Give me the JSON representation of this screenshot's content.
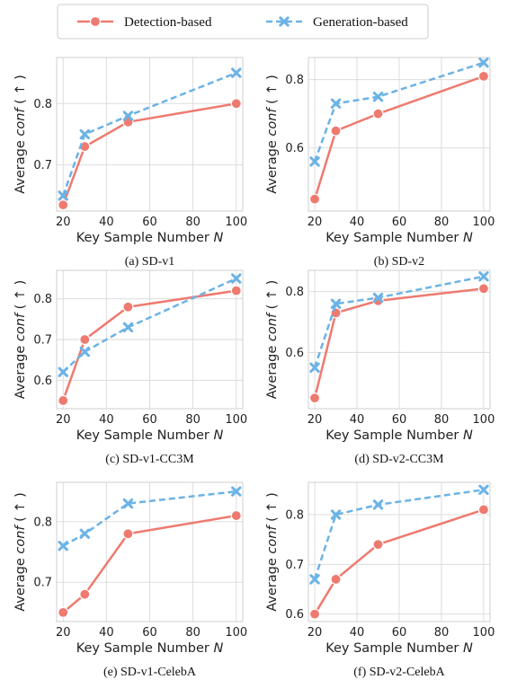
{
  "legend": {
    "series": [
      {
        "label": "Detection-based",
        "color": "#EE7A6F",
        "marker": "circle",
        "dash": "solid"
      },
      {
        "label": "Generation-based",
        "color": "#6BB3E6",
        "marker": "x",
        "dash": "dashed"
      }
    ]
  },
  "axes": {
    "xlabel": "Key Sample Number",
    "xvar": "N",
    "ylabel": "Average",
    "yvar": "conf",
    "yarrow": "( ↑ )"
  },
  "chart_data": [
    {
      "type": "line",
      "caption": "(a)  SD-v1",
      "x": [
        20,
        30,
        50,
        100
      ],
      "xlim": [
        17,
        103
      ],
      "xticks": [
        20,
        40,
        60,
        80,
        100
      ],
      "ylim": [
        0.625,
        0.875
      ],
      "yticks": [
        0.7,
        0.8
      ],
      "yticklabels": [
        "0.7",
        "0.8"
      ],
      "grid": true,
      "series": [
        {
          "name": "Detection-based",
          "values": [
            0.635,
            0.73,
            0.77,
            0.8
          ]
        },
        {
          "name": "Generation-based",
          "values": [
            0.65,
            0.75,
            0.78,
            0.85
          ]
        }
      ]
    },
    {
      "type": "line",
      "caption": "(b)  SD-v2",
      "x": [
        20,
        30,
        50,
        100
      ],
      "xlim": [
        17,
        103
      ],
      "xticks": [
        20,
        40,
        60,
        80,
        100
      ],
      "ylim": [
        0.415,
        0.865
      ],
      "yticks": [
        0.6,
        0.8
      ],
      "yticklabels": [
        "0.6",
        "0.8"
      ],
      "grid": true,
      "series": [
        {
          "name": "Detection-based",
          "values": [
            0.45,
            0.65,
            0.7,
            0.81
          ]
        },
        {
          "name": "Generation-based",
          "values": [
            0.56,
            0.73,
            0.75,
            0.85
          ]
        }
      ]
    },
    {
      "type": "line",
      "caption": "(c)  SD-v1-CC3M",
      "x": [
        20,
        30,
        50,
        100
      ],
      "xlim": [
        17,
        103
      ],
      "xticks": [
        20,
        40,
        60,
        80,
        100
      ],
      "ylim": [
        0.53,
        0.87
      ],
      "yticks": [
        0.6,
        0.7,
        0.8
      ],
      "yticklabels": [
        "0.6",
        "0.7",
        "0.8"
      ],
      "grid": true,
      "series": [
        {
          "name": "Detection-based",
          "values": [
            0.55,
            0.7,
            0.78,
            0.82
          ]
        },
        {
          "name": "Generation-based",
          "values": [
            0.62,
            0.67,
            0.73,
            0.85
          ]
        }
      ]
    },
    {
      "type": "line",
      "caption": "(d)  SD-v2-CC3M",
      "x": [
        20,
        30,
        50,
        100
      ],
      "xlim": [
        17,
        103
      ],
      "xticks": [
        20,
        40,
        60,
        80,
        100
      ],
      "ylim": [
        0.415,
        0.87
      ],
      "yticks": [
        0.6,
        0.8
      ],
      "yticklabels": [
        "0.6",
        "0.8"
      ],
      "grid": true,
      "series": [
        {
          "name": "Detection-based",
          "values": [
            0.45,
            0.73,
            0.77,
            0.81
          ]
        },
        {
          "name": "Generation-based",
          "values": [
            0.55,
            0.76,
            0.78,
            0.85
          ]
        }
      ]
    },
    {
      "type": "line",
      "caption": "(e)  SD-v1-CelebA",
      "x": [
        20,
        30,
        50,
        100
      ],
      "xlim": [
        17,
        103
      ],
      "xticks": [
        20,
        40,
        60,
        80,
        100
      ],
      "ylim": [
        0.635,
        0.865
      ],
      "yticks": [
        0.7,
        0.8
      ],
      "yticklabels": [
        "0.7",
        "0.8"
      ],
      "grid": true,
      "series": [
        {
          "name": "Detection-based",
          "values": [
            0.65,
            0.68,
            0.78,
            0.81
          ]
        },
        {
          "name": "Generation-based",
          "values": [
            0.76,
            0.78,
            0.83,
            0.85
          ]
        }
      ]
    },
    {
      "type": "line",
      "caption": "(f)  SD-v2-CelebA",
      "x": [
        20,
        30,
        50,
        100
      ],
      "xlim": [
        17,
        103
      ],
      "xticks": [
        20,
        40,
        60,
        80,
        100
      ],
      "ylim": [
        0.585,
        0.865
      ],
      "yticks": [
        0.6,
        0.7,
        0.8
      ],
      "yticklabels": [
        "0.6",
        "0.7",
        "0.8"
      ],
      "grid": true,
      "series": [
        {
          "name": "Detection-based",
          "values": [
            0.6,
            0.67,
            0.74,
            0.81
          ]
        },
        {
          "name": "Generation-based",
          "values": [
            0.67,
            0.8,
            0.82,
            0.85
          ]
        }
      ]
    }
  ]
}
